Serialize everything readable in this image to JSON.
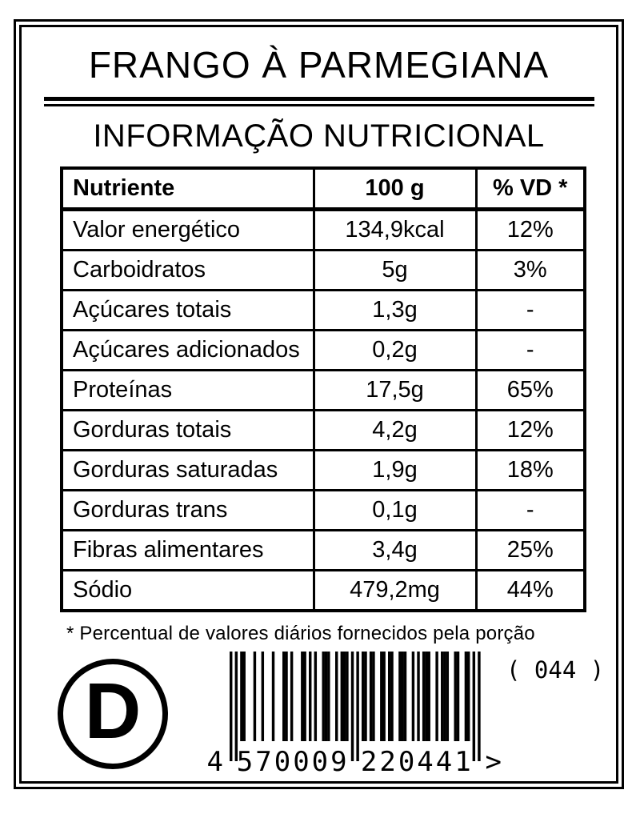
{
  "label": {
    "title": "FRANGO À PARMEGIANA",
    "subtitle": "INFORMAÇÃO NUTRICIONAL"
  },
  "table": {
    "headers": {
      "nutrient": "Nutriente",
      "amount": "100 g",
      "dv": "% VD *"
    },
    "rows": [
      {
        "nutrient": "Valor energético",
        "amount": "134,9kcal",
        "dv": "12%"
      },
      {
        "nutrient": "Carboidratos",
        "amount": "5g",
        "dv": "3%"
      },
      {
        "nutrient": "Açúcares totais",
        "amount": "1,3g",
        "dv": "-"
      },
      {
        "nutrient": "Açúcares adicionados",
        "amount": "0,2g",
        "dv": "-"
      },
      {
        "nutrient": "Proteínas",
        "amount": "17,5g",
        "dv": "65%"
      },
      {
        "nutrient": "Gorduras totais",
        "amount": "4,2g",
        "dv": "12%"
      },
      {
        "nutrient": "Gorduras saturadas",
        "amount": "1,9g",
        "dv": "18%"
      },
      {
        "nutrient": "Gorduras trans",
        "amount": "0,1g",
        "dv": "-"
      },
      {
        "nutrient": "Fibras alimentares",
        "amount": "3,4g",
        "dv": "25%"
      },
      {
        "nutrient": "Sódio",
        "amount": "479,2mg",
        "dv": "44%"
      }
    ],
    "footnote": "* Percentual de valores diários fornecidos pela porção"
  },
  "logo": {
    "letter": "D"
  },
  "barcode": {
    "value": "4570009220441",
    "display": {
      "first": "4",
      "left_group": "570009",
      "right_group": "220441",
      "quiet_zone": ">"
    },
    "code_right": "( 044 )"
  },
  "colors": {
    "ink": "#000000",
    "background": "#ffffff"
  }
}
